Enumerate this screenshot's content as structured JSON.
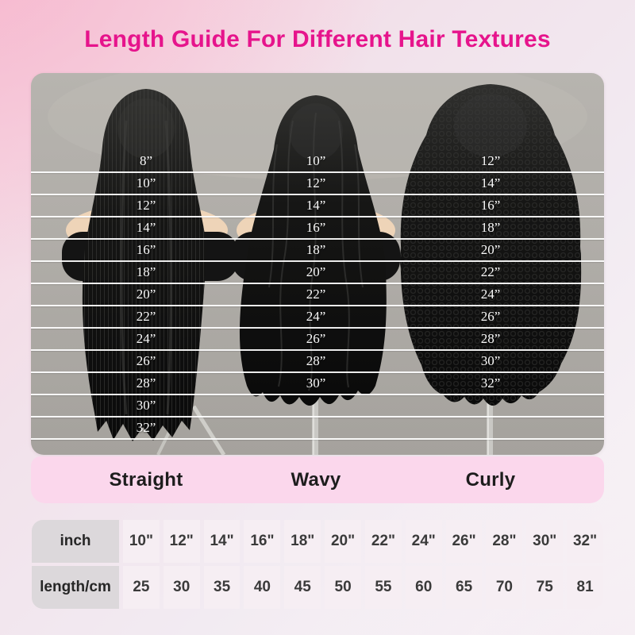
{
  "title": "Length Guide For Different Hair Textures",
  "colors": {
    "accent": "#e6148c",
    "label_bar_pink": "#fbd7ec",
    "photo_background_gray": "#aeaba6",
    "guide_line": "#ffffff",
    "table_header_bg": "#dcd8db",
    "table_cell_bg": "#f6eef3"
  },
  "guide": {
    "columns": [
      {
        "label": "Straight",
        "lengths": [
          "8”",
          "10”",
          "12”",
          "14”",
          "16”",
          "18”",
          "20”",
          "22”",
          "24”",
          "26”",
          "28”",
          "30”",
          "32”"
        ]
      },
      {
        "label": "Wavy",
        "lengths": [
          "10”",
          "12”",
          "14”",
          "16”",
          "18”",
          "20”",
          "22”",
          "24”",
          "26”",
          "28”",
          "30”"
        ]
      },
      {
        "label": "Curly",
        "lengths": [
          "12”",
          "14”",
          "16”",
          "18”",
          "20”",
          "22”",
          "24”",
          "26”",
          "28”",
          "30”",
          "32”"
        ]
      }
    ]
  },
  "table": {
    "rows": [
      {
        "header": "inch",
        "values": [
          "10\"",
          "12\"",
          "14\"",
          "16\"",
          "18\"",
          "20\"",
          "22\"",
          "24\"",
          "26\"",
          "28\"",
          "30\"",
          "32\""
        ]
      },
      {
        "header": "length/cm",
        "values": [
          "25",
          "30",
          "35",
          "40",
          "45",
          "50",
          "55",
          "60",
          "65",
          "70",
          "75",
          "81"
        ]
      }
    ]
  }
}
